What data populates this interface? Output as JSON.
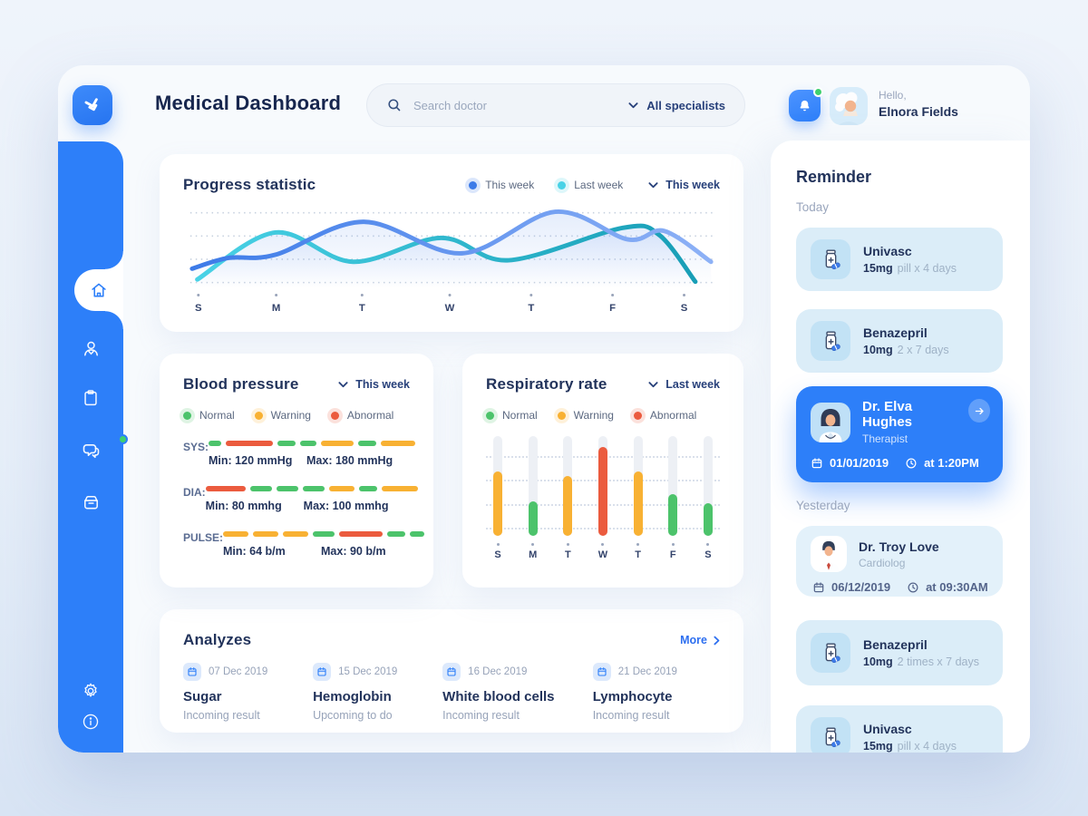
{
  "header": {
    "logo_icon": "double-chevron-down-logo",
    "title": "Medical Dashboard",
    "search": {
      "icon": "search-icon",
      "placeholder": "Search doctor"
    },
    "specialists_dropdown": {
      "icon": "chevron-down-icon",
      "label": "All specialists"
    },
    "notifications": {
      "icon": "bell-icon",
      "has_unread": true
    },
    "user": {
      "avatar_icon": "elderly-woman-avatar",
      "greeting": "Hello,",
      "name": "Elnora Fields"
    }
  },
  "sidebar": {
    "items": [
      {
        "icon": "home-icon",
        "active": true
      },
      {
        "icon": "doctor-icon",
        "active": false
      },
      {
        "icon": "clipboard-icon",
        "active": false
      },
      {
        "icon": "chat-icon",
        "active": false,
        "badge": true
      },
      {
        "icon": "archive-box-icon",
        "active": false
      }
    ],
    "footer_items": [
      {
        "icon": "settings-gear-icon"
      },
      {
        "icon": "info-icon"
      }
    ]
  },
  "status_colors": {
    "normal": "#4CC36B",
    "warning": "#F8B133",
    "abnormal": "#EB5B3E"
  },
  "chart_data": [
    {
      "id": "progress-statistic",
      "type": "line",
      "title": "Progress statistic",
      "filter": "This week",
      "x_labels": [
        "S",
        "M",
        "T",
        "W",
        "T",
        "F",
        "S"
      ],
      "ylim": [
        0,
        100
      ],
      "grid": "4 dotted horizontal lines",
      "legend_position": "top-right",
      "series": [
        {
          "name": "This week",
          "color": "#3D7BE8",
          "color_end": "#8DB1F6",
          "values_by_day": [
            20,
            45,
            78,
            42,
            85,
            60,
            32
          ],
          "curve_points": [
            [
              0,
              82
            ],
            [
              7,
              68
            ],
            [
              16,
              64
            ],
            [
              33,
              21
            ],
            [
              52,
              62
            ],
            [
              70,
              8
            ],
            [
              84,
              44
            ],
            [
              91,
              33
            ],
            [
              100,
              73
            ]
          ]
        },
        {
          "name": "Last week",
          "color": "#49D2E6",
          "color_end": "#189EB6",
          "values_by_day": [
            12,
            62,
            34,
            56,
            34,
            70,
            8
          ],
          "curve_points": [
            [
              1,
              96
            ],
            [
              16,
              35
            ],
            [
              31,
              73
            ],
            [
              48,
              42
            ],
            [
              61,
              71
            ],
            [
              83,
              29
            ],
            [
              90,
              38
            ],
            [
              97,
              99
            ]
          ]
        }
      ]
    },
    {
      "id": "blood-pressure",
      "type": "segmented-status-rows",
      "title": "Blood pressure",
      "filter": "This week",
      "legend": [
        {
          "label": "Normal",
          "status": "normal"
        },
        {
          "label": "Warning",
          "status": "warning"
        },
        {
          "label": "Abnormal",
          "status": "abnormal"
        }
      ],
      "rows": [
        {
          "label": "SYS:",
          "min": "Min: 120 mmHg",
          "max": "Max: 180 mmHg",
          "segments": [
            [
              "normal",
              14
            ],
            [
              "abnormal",
              52
            ],
            [
              "normal",
              20
            ],
            [
              "normal",
              18
            ],
            [
              "warning",
              36
            ],
            [
              "normal",
              20
            ],
            [
              "warning",
              38
            ]
          ]
        },
        {
          "label": "DIA:",
          "min": "Min: 80 mmhg",
          "max": "Max: 100 mmhg",
          "segments": [
            [
              "abnormal",
              44
            ],
            [
              "normal",
              24
            ],
            [
              "normal",
              24
            ],
            [
              "normal",
              24
            ],
            [
              "warning",
              28
            ],
            [
              "normal",
              20
            ],
            [
              "warning",
              40
            ]
          ]
        },
        {
          "label": "PULSE:",
          "min": "Min: 64 b/m",
          "max": "Max: 90 b/m",
          "segments": [
            [
              "warning",
              28
            ],
            [
              "warning",
              28
            ],
            [
              "warning",
              28
            ],
            [
              "normal",
              24
            ],
            [
              "abnormal",
              48
            ],
            [
              "normal",
              20
            ],
            [
              "normal",
              16
            ]
          ]
        }
      ]
    },
    {
      "id": "respiratory-rate",
      "type": "bar",
      "title": "Respiratory rate",
      "filter": "Last week",
      "legend": [
        {
          "label": "Normal",
          "status": "normal"
        },
        {
          "label": "Warning",
          "status": "warning"
        },
        {
          "label": "Abnormal",
          "status": "abnormal"
        }
      ],
      "categories": [
        "S",
        "M",
        "T",
        "W",
        "T",
        "F",
        "S"
      ],
      "values": [
        65,
        35,
        60,
        89,
        65,
        42,
        33
      ],
      "statuses": [
        "warning",
        "normal",
        "warning",
        "abnormal",
        "warning",
        "normal",
        "normal"
      ],
      "ylim": [
        0,
        100
      ],
      "grid": "dotted horizontal"
    }
  ],
  "analyzes": {
    "title": "Analyzes",
    "more_label": "More",
    "more_icon": "chevron-right-icon",
    "items": [
      {
        "icon": "calendar-icon",
        "date": "07 Dec 2019",
        "name": "Sugar",
        "status": "Incoming result"
      },
      {
        "icon": "calendar-icon",
        "date": "15 Dec 2019",
        "name": "Hemoglobin",
        "status": "Upcoming to do"
      },
      {
        "icon": "calendar-icon",
        "date": "16 Dec 2019",
        "name": "White blood cells",
        "status": "Incoming result"
      },
      {
        "icon": "calendar-icon",
        "date": "21 Dec 2019",
        "name": "Lymphocyte",
        "status": "Incoming result"
      }
    ]
  },
  "reminder": {
    "title": "Reminder",
    "sections": [
      {
        "label": "Today",
        "items": [
          {
            "type": "medication",
            "icon": "medicine-bottle-icon",
            "name": "Univasc",
            "dose": "15mg",
            "schedule": "pill x 4 days"
          },
          {
            "type": "medication",
            "icon": "medicine-bottle-icon",
            "name": "Benazepril",
            "dose": "10mg",
            "schedule": "2 x 7 days"
          },
          {
            "type": "appointment",
            "icon": "female-doctor-avatar",
            "name": "Dr. Elva Hughes",
            "specialty": "Therapist",
            "date": "01/01/2019",
            "time": "at 1:20PM",
            "highlighted": true,
            "action_icon": "arrow-right-icon"
          }
        ]
      },
      {
        "label": "Yesterday",
        "items": [
          {
            "type": "appointment",
            "icon": "male-doctor-avatar",
            "name": "Dr. Troy Love",
            "specialty": "Cardiolog",
            "date": "06/12/2019",
            "time": "at 09:30AM",
            "highlighted": false
          },
          {
            "type": "medication",
            "icon": "medicine-bottle-icon",
            "name": "Benazepril",
            "dose": "10mg",
            "schedule": "2 times x 7 days"
          },
          {
            "type": "medication",
            "icon": "medicine-bottle-icon",
            "name": "Univasc",
            "dose": "15mg",
            "schedule": "pill x 4 days"
          }
        ]
      }
    ]
  },
  "accent": {
    "blue": "#2D7FF9",
    "navy": "#22335B",
    "gray": "#9AA6BD"
  }
}
